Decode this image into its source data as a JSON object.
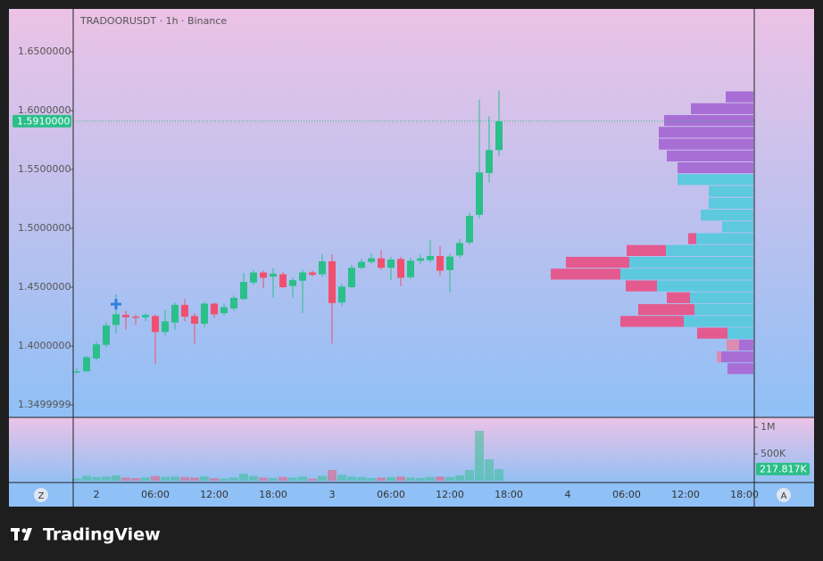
{
  "chart_data": {
    "type": "candlestick",
    "title": "TRADOORUSDT · 1h · Binance",
    "time_labels": [
      "2",
      "06:00",
      "12:00",
      "18:00",
      "3",
      "06:00",
      "12:00",
      "18:00",
      "4",
      "06:00",
      "12:00",
      "18:00"
    ],
    "up_color": "#2bbf8a",
    "down_color": "#f0506e",
    "ylim": [
      1.3394,
      1.6864
    ],
    "yticks": [
      {
        "value": 1.3499999,
        "label": "1.3499999"
      },
      {
        "value": 1.4,
        "label": "1.4000000"
      },
      {
        "value": 1.45,
        "label": "1.4500000"
      },
      {
        "value": 1.5,
        "label": "1.5000000"
      },
      {
        "value": 1.55,
        "label": "1.5500000"
      },
      {
        "value": 1.6,
        "label": "1.6000000"
      },
      {
        "value": 1.65,
        "label": "1.6500000"
      }
    ],
    "last_price": {
      "value": 1.591,
      "label": "1.5910000"
    },
    "open": [
      1.3775,
      1.3785,
      1.3895,
      1.401,
      1.418,
      1.4265,
      1.425,
      1.4245,
      1.4255,
      1.412,
      1.42,
      1.435,
      1.4255,
      1.419,
      1.436,
      1.428,
      1.432,
      1.44,
      1.454,
      1.4625,
      1.459,
      1.461,
      1.451,
      1.4555,
      1.4625,
      1.461,
      1.472,
      1.437,
      1.45,
      1.4665,
      1.4715,
      1.4745,
      1.4665,
      1.474,
      1.4585,
      1.4725,
      1.473,
      1.4765,
      1.4645,
      1.477,
      1.488,
      1.5115,
      1.547,
      1.5665
    ],
    "high": [
      1.381,
      1.392,
      1.404,
      1.42,
      1.444,
      1.43,
      1.427,
      1.428,
      1.427,
      1.431,
      1.437,
      1.44,
      1.428,
      1.438,
      1.437,
      1.436,
      1.443,
      1.462,
      1.465,
      1.464,
      1.466,
      1.463,
      1.458,
      1.465,
      1.464,
      1.478,
      1.478,
      1.453,
      1.469,
      1.474,
      1.479,
      1.4815,
      1.476,
      1.476,
      1.475,
      1.478,
      1.49,
      1.485,
      1.478,
      1.491,
      1.5135,
      1.6095,
      1.595,
      1.617
    ],
    "low": [
      1.377,
      1.378,
      1.3875,
      1.399,
      1.411,
      1.414,
      1.418,
      1.421,
      1.385,
      1.409,
      1.414,
      1.421,
      1.402,
      1.416,
      1.424,
      1.426,
      1.43,
      1.439,
      1.452,
      1.449,
      1.441,
      1.449,
      1.441,
      1.428,
      1.459,
      1.459,
      1.402,
      1.434,
      1.449,
      1.4655,
      1.47,
      1.465,
      1.456,
      1.451,
      1.457,
      1.47,
      1.471,
      1.46,
      1.4455,
      1.475,
      1.486,
      1.5085,
      1.539,
      1.5615
    ],
    "close": [
      1.3785,
      1.3905,
      1.4015,
      1.4175,
      1.427,
      1.4245,
      1.424,
      1.4265,
      1.412,
      1.421,
      1.435,
      1.425,
      1.419,
      1.436,
      1.427,
      1.433,
      1.441,
      1.4545,
      1.4625,
      1.458,
      1.4615,
      1.45,
      1.456,
      1.4625,
      1.4605,
      1.472,
      1.4365,
      1.4505,
      1.4665,
      1.4715,
      1.4745,
      1.4665,
      1.4735,
      1.458,
      1.4725,
      1.4745,
      1.4765,
      1.464,
      1.476,
      1.4875,
      1.5105,
      1.5475,
      1.5665,
      1.591
    ],
    "volume": [
      40000,
      90000,
      70000,
      80000,
      100000,
      60000,
      50000,
      60000,
      90000,
      70000,
      80000,
      70000,
      60000,
      80000,
      50000,
      40000,
      60000,
      130000,
      90000,
      60000,
      50000,
      70000,
      60000,
      80000,
      40000,
      90000,
      200000,
      110000,
      80000,
      70000,
      50000,
      60000,
      70000,
      80000,
      60000,
      50000,
      70000,
      80000,
      70000,
      100000,
      200000,
      933000,
      400000,
      217817
    ],
    "volume_ylim": [
      0,
      1183000
    ],
    "volume_ticks": [
      {
        "value": 500000,
        "label": "500K"
      },
      {
        "value": 1000000,
        "label": "1M"
      }
    ],
    "last_volume": {
      "value": 217817,
      "label": "217.817K"
    },
    "profile": {
      "price_range": [
        1.3758,
        1.6167
      ],
      "value_area_rows": [
        7,
        20
      ],
      "up": [
        31,
        70,
        100,
        106,
        106,
        97,
        85,
        85,
        50,
        50,
        59,
        35,
        64,
        98,
        139,
        149,
        108,
        71,
        66,
        78,
        29,
        16,
        36,
        29
      ],
      "down": [
        0,
        0,
        0,
        0,
        0,
        0,
        0,
        0,
        0,
        0,
        0,
        0,
        9,
        44,
        71,
        78,
        35,
        26,
        63,
        71,
        34,
        14,
        5,
        0
      ],
      "colors": {
        "up_in": "#5cc9df",
        "down_in": "#e45a8e",
        "up_out": "#a86ed6",
        "down_out": "#dc8cb0"
      }
    },
    "buttons": [
      "Z",
      "A"
    ],
    "brand": "TradingView"
  }
}
